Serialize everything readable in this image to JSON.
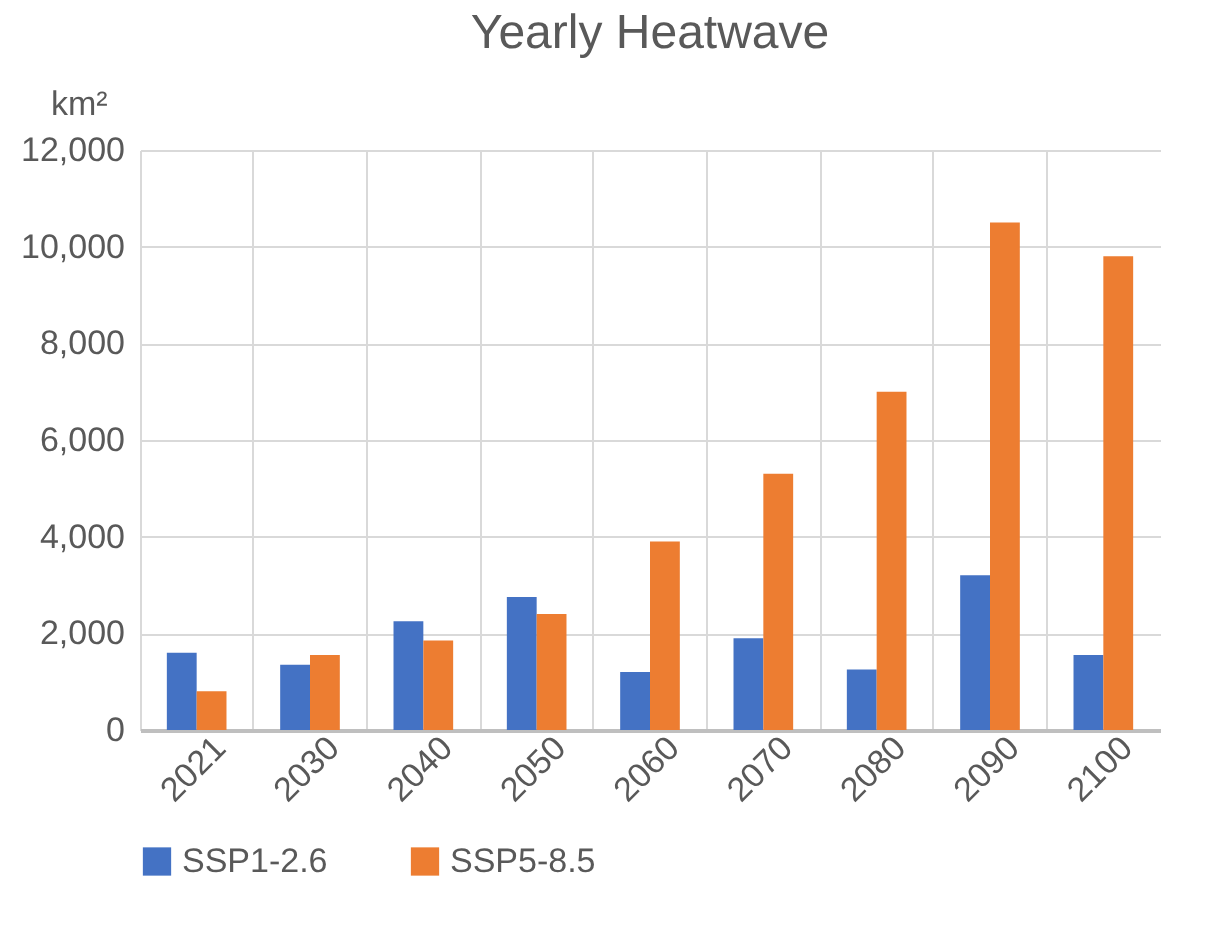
{
  "chart_data": {
    "type": "bar",
    "title": "Yearly Heatwave",
    "ylabel": "km²",
    "categories": [
      "2021",
      "2030",
      "2040",
      "2050",
      "2060",
      "2070",
      "2080",
      "2090",
      "2100"
    ],
    "series": [
      {
        "name": "SSP1-2.6",
        "color": "#4472c4",
        "values": [
          1600,
          1350,
          2250,
          2750,
          1200,
          1900,
          1250,
          3200,
          1550
        ]
      },
      {
        "name": "SSP5-8.5",
        "color": "#ed7d31",
        "values": [
          800,
          1550,
          1850,
          2400,
          3900,
          5300,
          7000,
          10500,
          9800
        ]
      }
    ],
    "ylim": [
      0,
      12000
    ],
    "yticks": [
      0,
      {
        "value": 2000,
        "label": "2,000"
      },
      {
        "value": 4000,
        "label": "4,000"
      },
      {
        "value": 6000,
        "label": "6,000"
      },
      {
        "value": 8000,
        "label": "8,000"
      },
      {
        "value": 10000,
        "label": "10,000"
      },
      {
        "value": 12000,
        "label": "12,000"
      }
    ],
    "grid": true,
    "legend": "bottom"
  }
}
